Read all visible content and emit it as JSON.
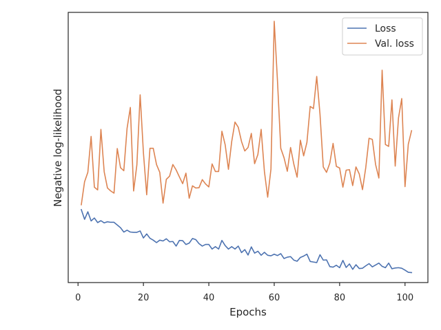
{
  "chart_data": {
    "type": "line",
    "title": "",
    "xlabel": "Epochs",
    "ylabel": "Negative log-likelihood",
    "xlim": [
      -3.0,
      107.0
    ],
    "ylim": [
      0.0,
      1.0
    ],
    "y_ticks_shown": false,
    "x_ticks": [
      0,
      20,
      40,
      60,
      80,
      100
    ],
    "grid": false,
    "legend": "top-right",
    "series": [
      {
        "name": "Loss",
        "color": "#4c72b0",
        "x": [
          1,
          2,
          3,
          4,
          5,
          6,
          7,
          8,
          9,
          10,
          11,
          12,
          13,
          14,
          15,
          16,
          17,
          18,
          19,
          20,
          21,
          22,
          23,
          24,
          25,
          26,
          27,
          28,
          29,
          30,
          31,
          32,
          33,
          34,
          35,
          36,
          37,
          38,
          39,
          40,
          41,
          42,
          43,
          44,
          45,
          46,
          47,
          48,
          49,
          50,
          51,
          52,
          53,
          54,
          55,
          56,
          57,
          58,
          59,
          60,
          61,
          62,
          63,
          64,
          65,
          66,
          67,
          68,
          69,
          70,
          71,
          72,
          73,
          74,
          75,
          76,
          77,
          78,
          79,
          80,
          81,
          82,
          83,
          84,
          85,
          86,
          87,
          88,
          89,
          90,
          91,
          92,
          93,
          94,
          95,
          96,
          97,
          98,
          99,
          100,
          101,
          102
        ],
        "values": [
          0.27,
          0.234,
          0.262,
          0.228,
          0.239,
          0.222,
          0.229,
          0.221,
          0.225,
          0.223,
          0.223,
          0.213,
          0.203,
          0.187,
          0.194,
          0.187,
          0.186,
          0.186,
          0.191,
          0.165,
          0.18,
          0.164,
          0.157,
          0.148,
          0.157,
          0.154,
          0.162,
          0.151,
          0.152,
          0.135,
          0.156,
          0.155,
          0.141,
          0.146,
          0.163,
          0.159,
          0.144,
          0.135,
          0.141,
          0.141,
          0.124,
          0.133,
          0.124,
          0.156,
          0.137,
          0.124,
          0.133,
          0.124,
          0.135,
          0.111,
          0.122,
          0.102,
          0.132,
          0.109,
          0.116,
          0.101,
          0.112,
          0.101,
          0.099,
          0.105,
          0.1,
          0.107,
          0.089,
          0.094,
          0.096,
          0.083,
          0.079,
          0.093,
          0.098,
          0.105,
          0.078,
          0.076,
          0.074,
          0.103,
          0.083,
          0.084,
          0.059,
          0.057,
          0.064,
          0.055,
          0.082,
          0.056,
          0.069,
          0.049,
          0.066,
          0.052,
          0.053,
          0.062,
          0.07,
          0.058,
          0.065,
          0.072,
          0.06,
          0.055,
          0.072,
          0.051,
          0.054,
          0.055,
          0.053,
          0.046,
          0.038,
          0.037
        ]
      },
      {
        "name": "Val. loss",
        "color": "#dd8452",
        "x": [
          1,
          2,
          3,
          4,
          5,
          6,
          7,
          8,
          9,
          10,
          11,
          12,
          13,
          14,
          15,
          16,
          17,
          18,
          19,
          20,
          21,
          22,
          23,
          24,
          25,
          26,
          27,
          28,
          29,
          30,
          31,
          32,
          33,
          34,
          35,
          36,
          37,
          38,
          39,
          40,
          41,
          42,
          43,
          44,
          45,
          46,
          47,
          48,
          49,
          50,
          51,
          52,
          53,
          54,
          55,
          56,
          57,
          58,
          59,
          60,
          61,
          62,
          63,
          64,
          65,
          66,
          67,
          68,
          69,
          70,
          71,
          72,
          73,
          74,
          75,
          76,
          77,
          78,
          79,
          80,
          81,
          82,
          83,
          84,
          85,
          86,
          87,
          88,
          89,
          90,
          91,
          92,
          93,
          94,
          95,
          96,
          97,
          98,
          99,
          100,
          101,
          102
        ],
        "values": [
          0.288,
          0.373,
          0.408,
          0.541,
          0.353,
          0.343,
          0.567,
          0.41,
          0.35,
          0.339,
          0.331,
          0.496,
          0.425,
          0.414,
          0.571,
          0.648,
          0.339,
          0.436,
          0.695,
          0.48,
          0.325,
          0.497,
          0.497,
          0.437,
          0.408,
          0.294,
          0.382,
          0.394,
          0.437,
          0.417,
          0.391,
          0.366,
          0.405,
          0.312,
          0.358,
          0.35,
          0.351,
          0.381,
          0.365,
          0.354,
          0.439,
          0.411,
          0.411,
          0.56,
          0.51,
          0.419,
          0.522,
          0.594,
          0.575,
          0.522,
          0.487,
          0.5,
          0.552,
          0.44,
          0.474,
          0.567,
          0.411,
          0.316,
          0.42,
          0.967,
          0.745,
          0.497,
          0.462,
          0.412,
          0.5,
          0.438,
          0.39,
          0.527,
          0.469,
          0.519,
          0.652,
          0.644,
          0.763,
          0.623,
          0.428,
          0.408,
          0.442,
          0.515,
          0.43,
          0.424,
          0.353,
          0.416,
          0.418,
          0.359,
          0.428,
          0.402,
          0.344,
          0.426,
          0.534,
          0.53,
          0.437,
          0.387,
          0.786,
          0.511,
          0.504,
          0.676,
          0.431,
          0.609,
          0.681,
          0.355,
          0.512,
          0.562
        ]
      }
    ]
  }
}
